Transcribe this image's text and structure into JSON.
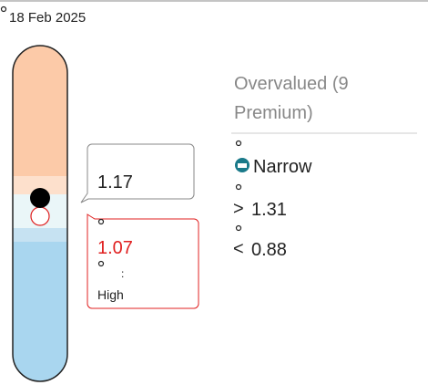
{
  "date": "18 Feb 2025",
  "valuation": {
    "label": "Overvalued (9 Premium)"
  },
  "moat": "Narrow",
  "thresholds": [
    {
      "symbol": ">",
      "value": "1.31"
    },
    {
      "symbol": "<",
      "value": "0.88"
    }
  ],
  "price_callout": {
    "value": "1.17"
  },
  "fair_value_callout": {
    "value": "1.07",
    "separator": ":",
    "note": "High"
  }
}
